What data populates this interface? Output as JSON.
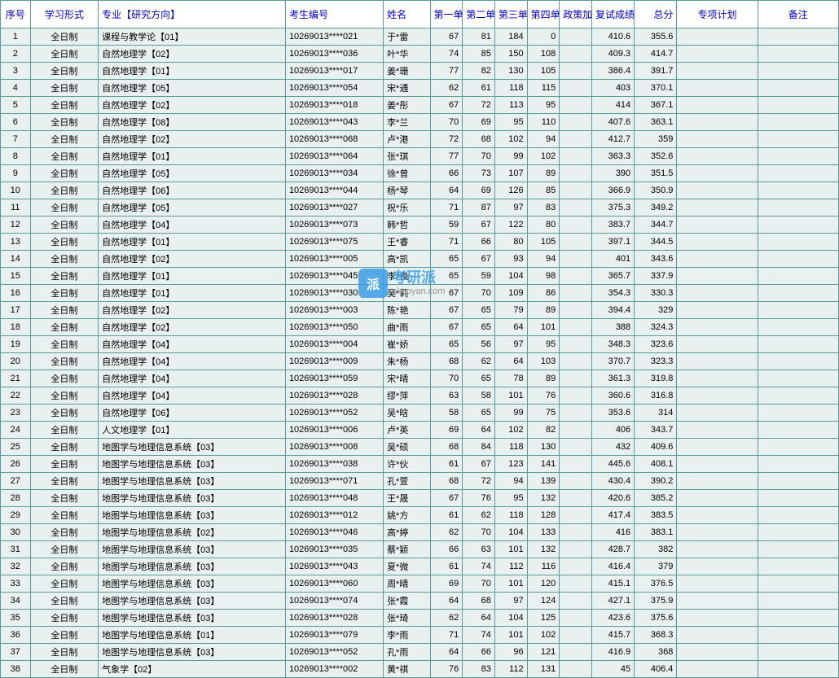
{
  "table": {
    "headers": {
      "seq": "序号",
      "mode": "学习形式",
      "major": "专业【研究方向】",
      "exam": "考生编号",
      "name": "姓名",
      "u1": "第一单元",
      "u2": "第二单元",
      "u3": "第三单元",
      "u4": "第四单元",
      "bonus": "政策加分",
      "retest": "复试成绩",
      "total": "总分",
      "plan": "专项计划",
      "note": "备注"
    },
    "rows": [
      {
        "seq": "1",
        "mode": "全日制",
        "major": "课程与教学论【01】",
        "exam": "10269013****021",
        "name": "于*雷",
        "u1": "67",
        "u2": "81",
        "u3": "184",
        "u4": "0",
        "bonus": "",
        "retest": "410.6",
        "total": "355.6",
        "plan": "",
        "note": ""
      },
      {
        "seq": "2",
        "mode": "全日制",
        "major": "自然地理学【02】",
        "exam": "10269013****036",
        "name": "叶*华",
        "u1": "74",
        "u2": "85",
        "u3": "150",
        "u4": "108",
        "bonus": "",
        "retest": "409.3",
        "total": "414.7",
        "plan": "",
        "note": ""
      },
      {
        "seq": "3",
        "mode": "全日制",
        "major": "自然地理学【01】",
        "exam": "10269013****017",
        "name": "姜*珊",
        "u1": "77",
        "u2": "82",
        "u3": "130",
        "u4": "105",
        "bonus": "",
        "retest": "386.4",
        "total": "391.7",
        "plan": "",
        "note": ""
      },
      {
        "seq": "4",
        "mode": "全日制",
        "major": "自然地理学【05】",
        "exam": "10269013****054",
        "name": "宋*通",
        "u1": "62",
        "u2": "61",
        "u3": "118",
        "u4": "115",
        "bonus": "",
        "retest": "403",
        "total": "370.1",
        "plan": "",
        "note": ""
      },
      {
        "seq": "5",
        "mode": "全日制",
        "major": "自然地理学【02】",
        "exam": "10269013****018",
        "name": "姜*彤",
        "u1": "67",
        "u2": "72",
        "u3": "113",
        "u4": "95",
        "bonus": "",
        "retest": "414",
        "total": "367.1",
        "plan": "",
        "note": ""
      },
      {
        "seq": "6",
        "mode": "全日制",
        "major": "自然地理学【08】",
        "exam": "10269013****043",
        "name": "李*兰",
        "u1": "70",
        "u2": "69",
        "u3": "95",
        "u4": "110",
        "bonus": "",
        "retest": "407.6",
        "total": "363.1",
        "plan": "",
        "note": ""
      },
      {
        "seq": "7",
        "mode": "全日制",
        "major": "自然地理学【02】",
        "exam": "10269013****068",
        "name": "卢*港",
        "u1": "72",
        "u2": "68",
        "u3": "102",
        "u4": "94",
        "bonus": "",
        "retest": "412.7",
        "total": "359",
        "plan": "",
        "note": ""
      },
      {
        "seq": "8",
        "mode": "全日制",
        "major": "自然地理学【01】",
        "exam": "10269013****064",
        "name": "张*琪",
        "u1": "77",
        "u2": "70",
        "u3": "99",
        "u4": "102",
        "bonus": "",
        "retest": "363.3",
        "total": "352.6",
        "plan": "",
        "note": ""
      },
      {
        "seq": "9",
        "mode": "全日制",
        "major": "自然地理学【05】",
        "exam": "10269013****034",
        "name": "徐*曾",
        "u1": "66",
        "u2": "73",
        "u3": "107",
        "u4": "89",
        "bonus": "",
        "retest": "390",
        "total": "351.5",
        "plan": "",
        "note": ""
      },
      {
        "seq": "10",
        "mode": "全日制",
        "major": "自然地理学【06】",
        "exam": "10269013****044",
        "name": "杨*琴",
        "u1": "64",
        "u2": "69",
        "u3": "126",
        "u4": "85",
        "bonus": "",
        "retest": "366.9",
        "total": "350.9",
        "plan": "",
        "note": ""
      },
      {
        "seq": "11",
        "mode": "全日制",
        "major": "自然地理学【05】",
        "exam": "10269013****027",
        "name": "祝*乐",
        "u1": "71",
        "u2": "87",
        "u3": "97",
        "u4": "83",
        "bonus": "",
        "retest": "375.3",
        "total": "349.2",
        "plan": "",
        "note": ""
      },
      {
        "seq": "12",
        "mode": "全日制",
        "major": "自然地理学【04】",
        "exam": "10269013****073",
        "name": "韩*哲",
        "u1": "59",
        "u2": "67",
        "u3": "122",
        "u4": "80",
        "bonus": "",
        "retest": "383.7",
        "total": "344.7",
        "plan": "",
        "note": ""
      },
      {
        "seq": "13",
        "mode": "全日制",
        "major": "自然地理学【01】",
        "exam": "10269013****075",
        "name": "王*睿",
        "u1": "71",
        "u2": "66",
        "u3": "80",
        "u4": "105",
        "bonus": "",
        "retest": "397.1",
        "total": "344.5",
        "plan": "",
        "note": ""
      },
      {
        "seq": "14",
        "mode": "全日制",
        "major": "自然地理学【02】",
        "exam": "10269013****005",
        "name": "高*凯",
        "u1": "65",
        "u2": "67",
        "u3": "93",
        "u4": "94",
        "bonus": "",
        "retest": "401",
        "total": "343.6",
        "plan": "",
        "note": ""
      },
      {
        "seq": "15",
        "mode": "全日制",
        "major": "自然地理学【01】",
        "exam": "10269013****045",
        "name": "李*俊",
        "u1": "65",
        "u2": "59",
        "u3": "104",
        "u4": "98",
        "bonus": "",
        "retest": "365.7",
        "total": "337.9",
        "plan": "",
        "note": ""
      },
      {
        "seq": "16",
        "mode": "全日制",
        "major": "自然地理学【01】",
        "exam": "10269013****030",
        "name": "吴*莉",
        "u1": "67",
        "u2": "70",
        "u3": "109",
        "u4": "86",
        "bonus": "",
        "retest": "354.3",
        "total": "330.3",
        "plan": "",
        "note": ""
      },
      {
        "seq": "17",
        "mode": "全日制",
        "major": "自然地理学【02】",
        "exam": "10269013****003",
        "name": "陈*艳",
        "u1": "67",
        "u2": "65",
        "u3": "79",
        "u4": "89",
        "bonus": "",
        "retest": "394.4",
        "total": "329",
        "plan": "",
        "note": ""
      },
      {
        "seq": "18",
        "mode": "全日制",
        "major": "自然地理学【02】",
        "exam": "10269013****050",
        "name": "曲*雨",
        "u1": "67",
        "u2": "65",
        "u3": "64",
        "u4": "101",
        "bonus": "",
        "retest": "388",
        "total": "324.3",
        "plan": "",
        "note": ""
      },
      {
        "seq": "19",
        "mode": "全日制",
        "major": "自然地理学【04】",
        "exam": "10269013****004",
        "name": "崔*娇",
        "u1": "65",
        "u2": "56",
        "u3": "97",
        "u4": "95",
        "bonus": "",
        "retest": "348.3",
        "total": "323.6",
        "plan": "",
        "note": ""
      },
      {
        "seq": "20",
        "mode": "全日制",
        "major": "自然地理学【04】",
        "exam": "10269013****009",
        "name": "朱*杨",
        "u1": "68",
        "u2": "62",
        "u3": "64",
        "u4": "103",
        "bonus": "",
        "retest": "370.7",
        "total": "323.3",
        "plan": "",
        "note": ""
      },
      {
        "seq": "21",
        "mode": "全日制",
        "major": "自然地理学【04】",
        "exam": "10269013****059",
        "name": "宋*晴",
        "u1": "70",
        "u2": "65",
        "u3": "78",
        "u4": "89",
        "bonus": "",
        "retest": "361.3",
        "total": "319.8",
        "plan": "",
        "note": ""
      },
      {
        "seq": "22",
        "mode": "全日制",
        "major": "自然地理学【04】",
        "exam": "10269013****028",
        "name": "缪*萍",
        "u1": "63",
        "u2": "58",
        "u3": "101",
        "u4": "76",
        "bonus": "",
        "retest": "360.6",
        "total": "316.8",
        "plan": "",
        "note": ""
      },
      {
        "seq": "23",
        "mode": "全日制",
        "major": "自然地理学【06】",
        "exam": "10269013****052",
        "name": "吴*晗",
        "u1": "58",
        "u2": "65",
        "u3": "99",
        "u4": "75",
        "bonus": "",
        "retest": "353.6",
        "total": "314",
        "plan": "",
        "note": ""
      },
      {
        "seq": "24",
        "mode": "全日制",
        "major": "人文地理学【01】",
        "exam": "10269013****006",
        "name": "卢*英",
        "u1": "69",
        "u2": "64",
        "u3": "102",
        "u4": "82",
        "bonus": "",
        "retest": "406",
        "total": "343.7",
        "plan": "",
        "note": ""
      },
      {
        "seq": "25",
        "mode": "全日制",
        "major": "地图学与地理信息系统【03】",
        "exam": "10269013****008",
        "name": "吴*硕",
        "u1": "68",
        "u2": "84",
        "u3": "118",
        "u4": "130",
        "bonus": "",
        "retest": "432",
        "total": "409.6",
        "plan": "",
        "note": ""
      },
      {
        "seq": "26",
        "mode": "全日制",
        "major": "地图学与地理信息系统【03】",
        "exam": "10269013****038",
        "name": "许*伙",
        "u1": "61",
        "u2": "67",
        "u3": "123",
        "u4": "141",
        "bonus": "",
        "retest": "445.6",
        "total": "408.1",
        "plan": "",
        "note": ""
      },
      {
        "seq": "27",
        "mode": "全日制",
        "major": "地图学与地理信息系统【03】",
        "exam": "10269013****071",
        "name": "孔*萱",
        "u1": "68",
        "u2": "72",
        "u3": "94",
        "u4": "139",
        "bonus": "",
        "retest": "430.4",
        "total": "390.2",
        "plan": "",
        "note": ""
      },
      {
        "seq": "28",
        "mode": "全日制",
        "major": "地图学与地理信息系统【03】",
        "exam": "10269013****048",
        "name": "王*晟",
        "u1": "67",
        "u2": "76",
        "u3": "95",
        "u4": "132",
        "bonus": "",
        "retest": "420.6",
        "total": "385.2",
        "plan": "",
        "note": ""
      },
      {
        "seq": "29",
        "mode": "全日制",
        "major": "地图学与地理信息系统【03】",
        "exam": "10269013****012",
        "name": "姚*方",
        "u1": "61",
        "u2": "62",
        "u3": "118",
        "u4": "128",
        "bonus": "",
        "retest": "417.4",
        "total": "383.5",
        "plan": "",
        "note": ""
      },
      {
        "seq": "30",
        "mode": "全日制",
        "major": "地图学与地理信息系统【02】",
        "exam": "10269013****046",
        "name": "高*婷",
        "u1": "62",
        "u2": "70",
        "u3": "104",
        "u4": "133",
        "bonus": "",
        "retest": "416",
        "total": "383.1",
        "plan": "",
        "note": ""
      },
      {
        "seq": "31",
        "mode": "全日制",
        "major": "地图学与地理信息系统【03】",
        "exam": "10269013****035",
        "name": "蔡*颖",
        "u1": "66",
        "u2": "63",
        "u3": "101",
        "u4": "132",
        "bonus": "",
        "retest": "428.7",
        "total": "382",
        "plan": "",
        "note": ""
      },
      {
        "seq": "32",
        "mode": "全日制",
        "major": "地图学与地理信息系统【03】",
        "exam": "10269013****043",
        "name": "夏*微",
        "u1": "61",
        "u2": "74",
        "u3": "112",
        "u4": "116",
        "bonus": "",
        "retest": "416.4",
        "total": "379",
        "plan": "",
        "note": ""
      },
      {
        "seq": "33",
        "mode": "全日制",
        "major": "地图学与地理信息系统【03】",
        "exam": "10269013****060",
        "name": "周*晴",
        "u1": "69",
        "u2": "70",
        "u3": "101",
        "u4": "120",
        "bonus": "",
        "retest": "415.1",
        "total": "376.5",
        "plan": "",
        "note": ""
      },
      {
        "seq": "34",
        "mode": "全日制",
        "major": "地图学与地理信息系统【03】",
        "exam": "10269013****074",
        "name": "张*霞",
        "u1": "64",
        "u2": "68",
        "u3": "97",
        "u4": "124",
        "bonus": "",
        "retest": "427.1",
        "total": "375.9",
        "plan": "",
        "note": ""
      },
      {
        "seq": "35",
        "mode": "全日制",
        "major": "地图学与地理信息系统【03】",
        "exam": "10269013****028",
        "name": "张*琦",
        "u1": "62",
        "u2": "64",
        "u3": "104",
        "u4": "125",
        "bonus": "",
        "retest": "423.6",
        "total": "375.6",
        "plan": "",
        "note": ""
      },
      {
        "seq": "36",
        "mode": "全日制",
        "major": "地图学与地理信息系统【01】",
        "exam": "10269013****079",
        "name": "李*雨",
        "u1": "71",
        "u2": "74",
        "u3": "101",
        "u4": "102",
        "bonus": "",
        "retest": "415.7",
        "total": "368.3",
        "plan": "",
        "note": ""
      },
      {
        "seq": "37",
        "mode": "全日制",
        "major": "地图学与地理信息系统【03】",
        "exam": "10269013****052",
        "name": "孔*雨",
        "u1": "64",
        "u2": "66",
        "u3": "96",
        "u4": "121",
        "bonus": "",
        "retest": "416.9",
        "total": "368",
        "plan": "",
        "note": ""
      },
      {
        "seq": "38",
        "mode": "全日制",
        "major": "气象学【02】",
        "exam": "10269013****002",
        "name": "黄*祺",
        "u1": "76",
        "u2": "83",
        "u3": "112",
        "u4": "131",
        "bonus": "",
        "retest": "45",
        "total": "406.4",
        "plan": "",
        "note": ""
      }
    ]
  },
  "watermark": {
    "icon": "派",
    "cn": "考研派",
    "en": "okaoyan.com"
  },
  "styling": {
    "border_color": "#5a9a9a",
    "row_bg": "#e8f0f0",
    "header_bg": "#ffffff",
    "header_color": "#0000cc",
    "font_size_header": 12,
    "font_size_cell": 11,
    "watermark_color": "#3b9de6"
  }
}
